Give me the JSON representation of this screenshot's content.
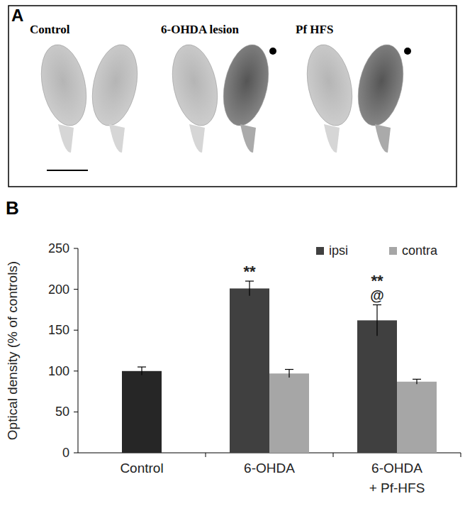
{
  "figure": {
    "panel_labels": [
      "A",
      "B"
    ],
    "images": [
      {
        "label": "Control",
        "marked": false
      },
      {
        "label": "6-OHDA lesion",
        "marked": true
      },
      {
        "label": "Pf HFS",
        "marked": true
      }
    ]
  },
  "chart_data": {
    "type": "bar",
    "y_label": "Optical density (% of controls)",
    "categories": [
      "Control",
      "6-OHDA",
      "6-OHDA\n+ Pf-HFS"
    ],
    "series": [
      {
        "color": "#262626",
        "values": [
          100,
          null,
          null
        ],
        "errors": [
          5,
          null,
          null
        ]
      },
      {
        "name": "ipsi",
        "color": "#404040",
        "values": [
          null,
          201,
          162
        ],
        "errors": [
          null,
          9,
          19
        ],
        "annotations": [
          null,
          [
            "**"
          ],
          [
            "**",
            "@"
          ]
        ]
      },
      {
        "name": "contra",
        "color": "#a6a6a6",
        "values": [
          null,
          97,
          87
        ],
        "errors": [
          null,
          5,
          3
        ]
      }
    ],
    "ylim": [
      0,
      250
    ],
    "yticks": [
      0,
      50,
      100,
      150,
      200,
      250
    ],
    "grid": false,
    "legend": "upper right"
  }
}
